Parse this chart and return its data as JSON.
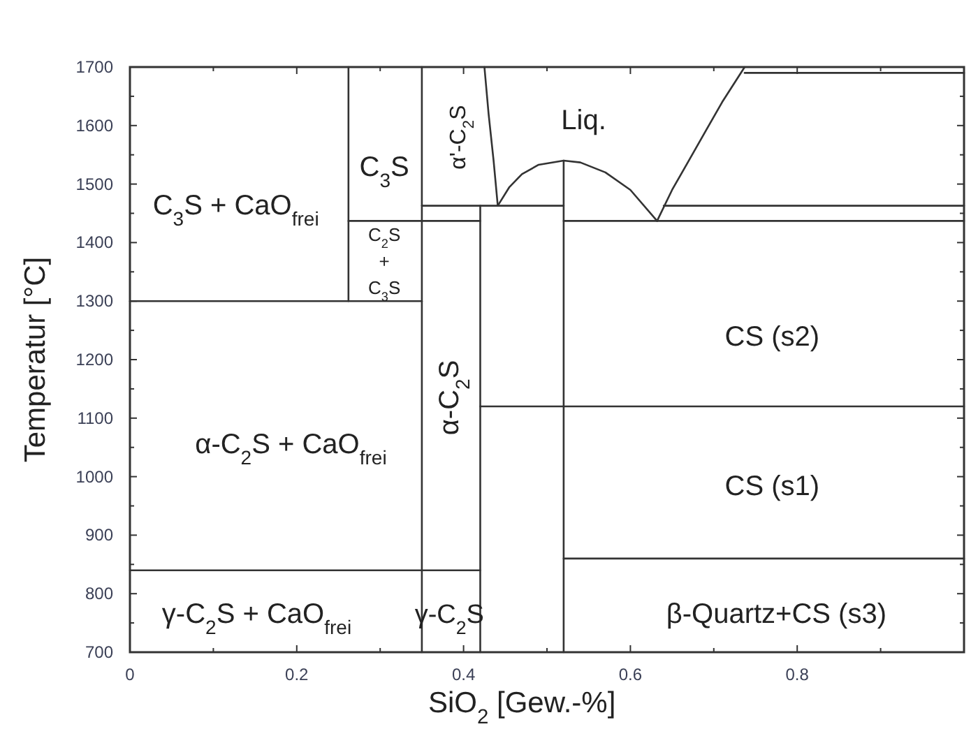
{
  "chart_data": {
    "type": "line",
    "xlabel": "SiO$_{2}$ [Gew.-%]",
    "ylabel": "Temperatur [°C]",
    "xlim": [
      0,
      1
    ],
    "ylim": [
      700,
      1700
    ],
    "xticks": [
      0,
      {
        "value": 0.1,
        "label": null
      },
      0.2,
      {
        "value": 0.3,
        "label": null
      },
      0.4,
      {
        "value": 0.5,
        "label": null
      },
      0.6,
      {
        "value": 0.7,
        "label": null
      },
      0.8,
      {
        "value": 0.9,
        "label": null
      }
    ],
    "yticks": [
      700,
      {
        "value": 750,
        "label": null
      },
      800,
      {
        "value": 850,
        "label": null
      },
      900,
      {
        "value": 950,
        "label": null
      },
      1000,
      {
        "value": 1050,
        "label": null
      },
      1100,
      {
        "value": 1150,
        "label": null
      },
      1200,
      {
        "value": 1250,
        "label": null
      },
      1300,
      {
        "value": 1350,
        "label": null
      },
      1400,
      {
        "value": 1450,
        "label": null
      },
      1500,
      {
        "value": 1550,
        "label": null
      },
      1600,
      {
        "value": 1650,
        "label": null
      },
      1700
    ],
    "grid": false,
    "marker": "none",
    "line_style": "solid",
    "series": [
      {
        "color": "#333333",
        "x": [
          0.262,
          0.262
        ],
        "values": [
          1300,
          1700
        ]
      },
      {
        "color": "#333333",
        "x": [
          0.35,
          0.35
        ],
        "values": [
          700,
          1700
        ]
      },
      {
        "color": "#333333",
        "x": [
          0,
          0.35
        ],
        "values": [
          1300,
          1300
        ]
      },
      {
        "color": "#333333",
        "x": [
          0.262,
          0.42
        ],
        "values": [
          1437,
          1437
        ]
      },
      {
        "color": "#333333",
        "x": [
          0.52,
          1
        ],
        "values": [
          1437,
          1437
        ]
      },
      {
        "color": "#333333",
        "x": [
          0.35,
          0.52
        ],
        "values": [
          1463,
          1463
        ]
      },
      {
        "color": "#333333",
        "x": [
          0.64,
          1
        ],
        "values": [
          1463,
          1463
        ]
      },
      {
        "color": "#333333",
        "x": [
          0.42,
          0.42
        ],
        "values": [
          700,
          1463
        ]
      },
      {
        "color": "#333333",
        "x": [
          0.52,
          0.52
        ],
        "values": [
          700,
          1540
        ]
      },
      {
        "color": "#333333",
        "x": [
          0.42,
          1
        ],
        "values": [
          1120,
          1120
        ]
      },
      {
        "color": "#333333",
        "x": [
          0.52,
          1
        ],
        "values": [
          860,
          860
        ]
      },
      {
        "color": "#333333",
        "x": [
          0,
          0.42
        ],
        "values": [
          840,
          840
        ]
      },
      {
        "color": "#333333",
        "x": [
          0.425,
          0.43,
          0.436,
          0.441
        ],
        "values": [
          1700,
          1620,
          1540,
          1463
        ]
      },
      {
        "color": "#333333",
        "x": [
          0.441,
          0.455,
          0.47,
          0.49,
          0.52,
          0.54,
          0.57,
          0.6,
          0.632
        ],
        "values": [
          1463,
          1495,
          1517,
          1533,
          1540,
          1537,
          1520,
          1490,
          1437
        ]
      },
      {
        "color": "#333333",
        "x": [
          0.632,
          0.65,
          0.67,
          0.69,
          0.71,
          0.737
        ],
        "values": [
          1437,
          1490,
          1540,
          1590,
          1640,
          1700
        ]
      },
      {
        "color": "#333333",
        "x": [
          0.737,
          1
        ],
        "values": [
          1690,
          1690
        ]
      }
    ],
    "annotations": [
      "C$_{3}$S + CaO$_{frei}$",
      "C$_{3}$S",
      "C$_{2}$S + C$_{3}$S",
      "α'-C$_{2}$S",
      "Liq.",
      "α-C$_{2}$S",
      "α-C$_{2}$S + CaO$_{frei}$",
      "CS (s2)",
      "CS (s1)",
      "γ-C$_{2}$S + CaO$_{frei}$",
      "γ-C$_{2}$S",
      "β-Quartz+CS (s3)"
    ]
  }
}
